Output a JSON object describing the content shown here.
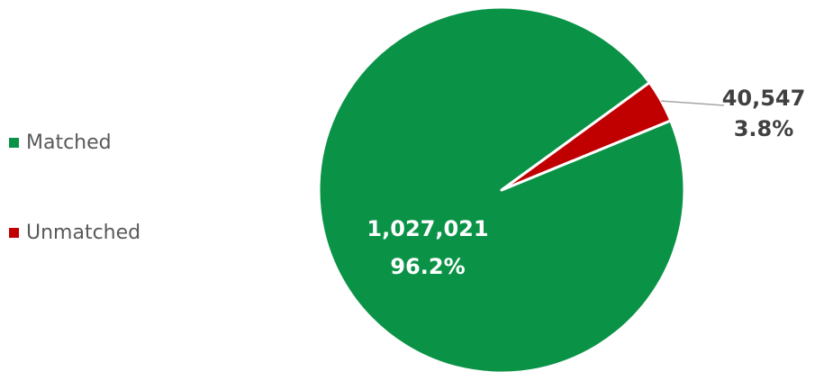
{
  "chart_data": {
    "type": "pie",
    "slices": [
      {
        "name": "Matched",
        "value": 1027021,
        "value_label": "1,027,021",
        "percent_label": "96.2%",
        "color": "#0a9347"
      },
      {
        "name": "Unmatched",
        "value": 40547,
        "value_label": "40,547",
        "percent_label": "3.8%",
        "color": "#c00000"
      }
    ],
    "legend_position": "left",
    "label_color_inside": "#ffffff",
    "label_color_outside": "#404040",
    "leader_line_color": "#a6a6a6"
  }
}
